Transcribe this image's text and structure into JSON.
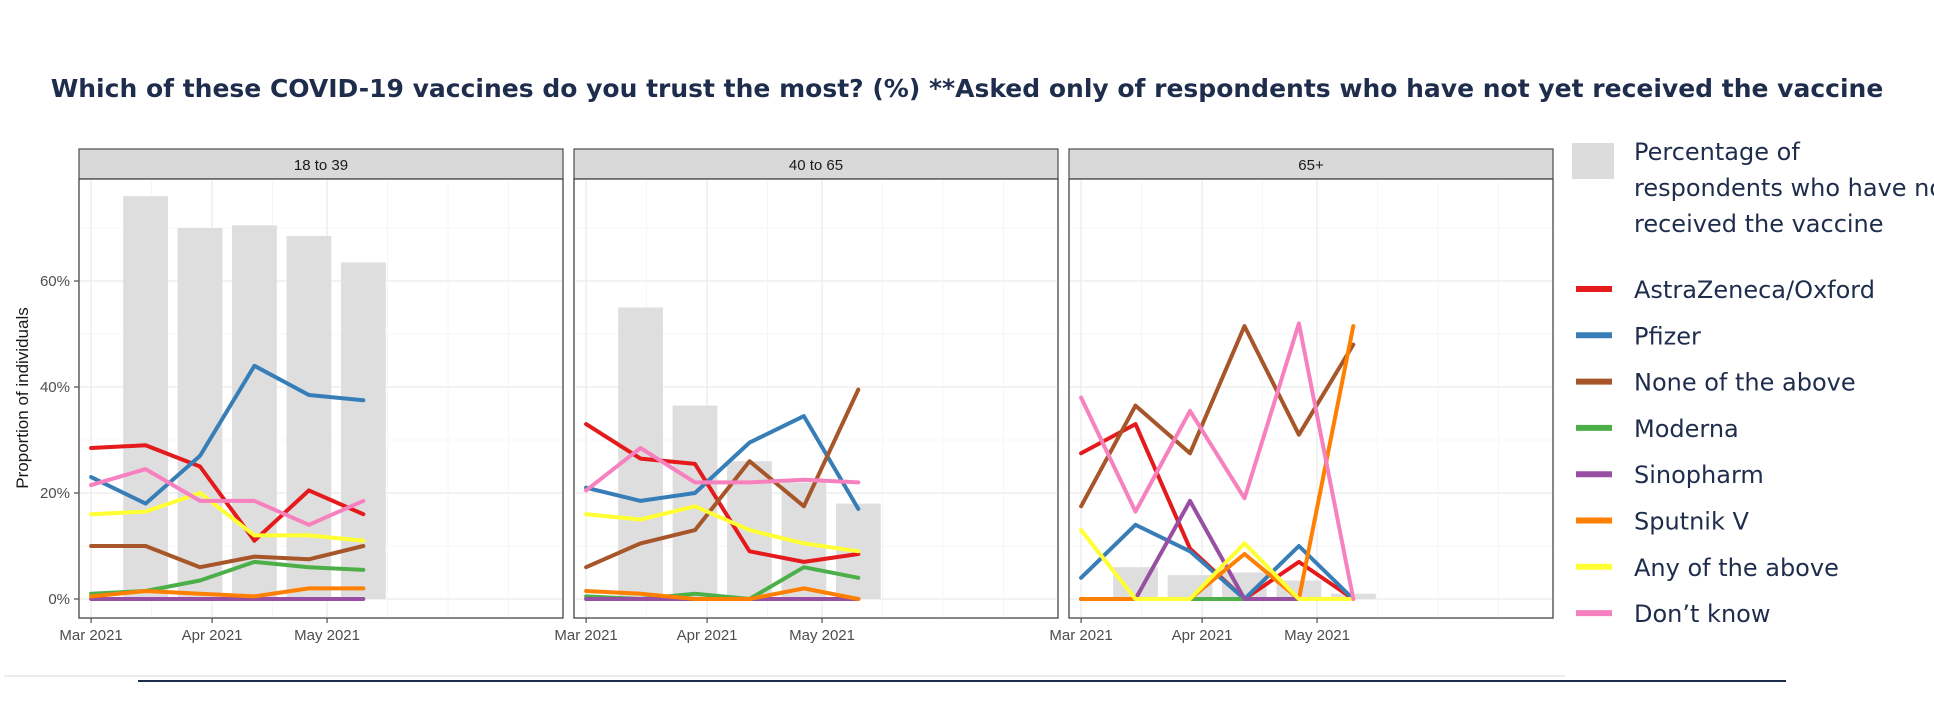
{
  "chart_data": {
    "type": "line",
    "title": "Which of these COVID-19 vaccines do you trust the most? (%) **Asked only of respondents who have not yet received the vaccine",
    "ylabel": "Proportion of individuals",
    "xlabel": "",
    "ylim": [
      0,
      80
    ],
    "yticks": [
      0,
      20,
      40,
      60
    ],
    "ytick_labels": [
      "0%",
      "20%",
      "40%",
      "60%"
    ],
    "x_range": [
      0,
      80
    ],
    "xticks": [
      2,
      22,
      41
    ],
    "xtick_labels": [
      "Mar 2021",
      "Apr 2021",
      "May 2021"
    ],
    "x": [
      2,
      11,
      20,
      29,
      38,
      47
    ],
    "bar_legend_label": "Percentage of respondents who have not received the vaccine",
    "panels": [
      {
        "label": "18 to 39",
        "bars": [
          {
            "x": 11,
            "value": 76
          },
          {
            "x": 20,
            "value": 70
          },
          {
            "x": 29,
            "value": 70.5
          },
          {
            "x": 38,
            "value": 68.5
          },
          {
            "x": 47,
            "value": 63.5
          }
        ],
        "series": [
          {
            "name": "AstraZeneca/Oxford",
            "values": [
              28.5,
              29,
              25,
              11,
              20.5,
              16
            ]
          },
          {
            "name": "Pfizer",
            "values": [
              23,
              18,
              27,
              44,
              38.5,
              37.5
            ]
          },
          {
            "name": "None of the above",
            "values": [
              10,
              10,
              6,
              8,
              7.5,
              10
            ]
          },
          {
            "name": "Moderna",
            "values": [
              1,
              1.5,
              3.5,
              7,
              6,
              5.5
            ]
          },
          {
            "name": "Sinopharm",
            "values": [
              0,
              0,
              0,
              0,
              0,
              0
            ]
          },
          {
            "name": "Sputnik V",
            "values": [
              0.5,
              1.5,
              1,
              0.5,
              2,
              2
            ]
          },
          {
            "name": "Any of the above",
            "values": [
              16,
              16.5,
              20,
              12,
              12,
              11
            ]
          },
          {
            "name": "Don’t know",
            "values": [
              21.5,
              24.5,
              18.5,
              18.5,
              14,
              18.5
            ]
          }
        ]
      },
      {
        "label": "40 to 65",
        "bars": [
          {
            "x": 11,
            "value": 55
          },
          {
            "x": 20,
            "value": 36.5
          },
          {
            "x": 29,
            "value": 26
          },
          {
            "x": 38,
            "value": 22
          },
          {
            "x": 47,
            "value": 18
          }
        ],
        "series": [
          {
            "name": "AstraZeneca/Oxford",
            "values": [
              33,
              26.5,
              25.5,
              9,
              7,
              8.5
            ]
          },
          {
            "name": "Pfizer",
            "values": [
              21,
              18.5,
              20,
              29.5,
              34.5,
              17
            ]
          },
          {
            "name": "None of the above",
            "values": [
              6,
              10.5,
              13,
              26,
              17.5,
              39.5
            ]
          },
          {
            "name": "Moderna",
            "values": [
              0.5,
              0,
              1,
              0,
              6,
              4
            ]
          },
          {
            "name": "Sinopharm",
            "values": [
              0,
              0,
              0,
              0,
              0,
              0
            ]
          },
          {
            "name": "Sputnik V",
            "values": [
              1.5,
              1,
              0,
              0,
              2,
              0
            ]
          },
          {
            "name": "Any of the above",
            "values": [
              16,
              15,
              17.5,
              13,
              10.5,
              9
            ]
          },
          {
            "name": "Don’t know",
            "values": [
              20.5,
              28.5,
              22,
              22,
              22.5,
              22
            ]
          }
        ]
      },
      {
        "label": "65+",
        "bars": [
          {
            "x": 11,
            "value": 6
          },
          {
            "x": 20,
            "value": 4.5
          },
          {
            "x": 29,
            "value": 5
          },
          {
            "x": 38,
            "value": 3.5
          },
          {
            "x": 47,
            "value": 1
          }
        ],
        "series": [
          {
            "name": "AstraZeneca/Oxford",
            "values": [
              27.5,
              33,
              9.5,
              0,
              7,
              0
            ]
          },
          {
            "name": "Pfizer",
            "values": [
              4,
              14,
              9,
              0,
              10,
              0
            ]
          },
          {
            "name": "None of the above",
            "values": [
              17.5,
              36.5,
              27.5,
              51.5,
              31,
              48
            ]
          },
          {
            "name": "Moderna",
            "values": [
              0,
              0,
              0,
              0,
              0,
              0
            ]
          },
          {
            "name": "Sinopharm",
            "values": [
              0,
              0,
              18.5,
              0,
              0,
              0
            ]
          },
          {
            "name": "Sputnik V",
            "values": [
              0,
              0,
              0,
              8.5,
              0,
              51.5
            ]
          },
          {
            "name": "Any of the above",
            "values": [
              13,
              0,
              0,
              10.5,
              0,
              0
            ]
          },
          {
            "name": "Don’t know",
            "values": [
              38,
              16.5,
              35.5,
              19,
              52,
              0
            ]
          }
        ]
      }
    ],
    "legend": [
      {
        "name": "AstraZeneca/Oxford",
        "color": "#e41a1c"
      },
      {
        "name": "Pfizer",
        "color": "#377eb8"
      },
      {
        "name": "None of the above",
        "color": "#a65628"
      },
      {
        "name": "Moderna",
        "color": "#4daf4a"
      },
      {
        "name": "Sinopharm",
        "color": "#984ea3"
      },
      {
        "name": "Sputnik V",
        "color": "#ff7f00"
      },
      {
        "name": "Any of the above",
        "color": "#ffff33"
      },
      {
        "name": "Don’t know",
        "color": "#f781bf"
      }
    ],
    "bar_color": "#dcdcdc"
  }
}
